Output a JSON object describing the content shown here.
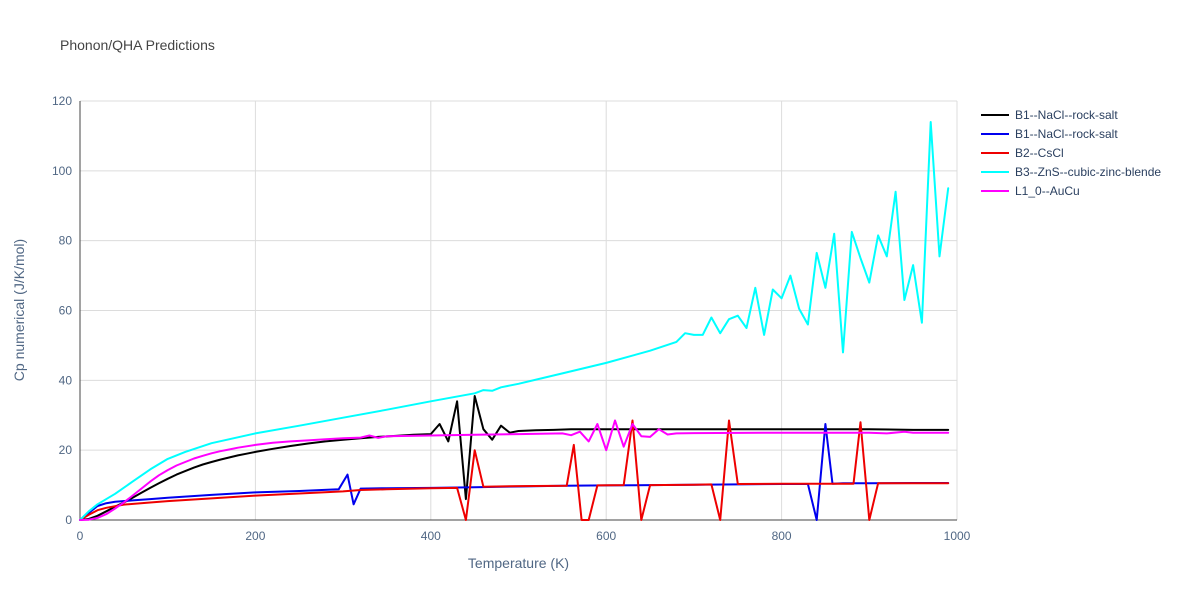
{
  "chart_data": {
    "type": "line",
    "title": "Phonon/QHA Predictions",
    "xlabel": "Temperature (K)",
    "ylabel": "Cp numerical (J/K/mol)",
    "xlim": [
      0,
      1000
    ],
    "ylim": [
      0,
      120
    ],
    "xticks": [
      0,
      200,
      400,
      600,
      800,
      1000
    ],
    "yticks": [
      0,
      20,
      40,
      60,
      80,
      100,
      120
    ],
    "grid": true,
    "legend_position": "top-right",
    "series": [
      {
        "name": "B1--NaCl--rock-salt",
        "color": "#000000",
        "x": [
          0,
          10,
          20,
          30,
          40,
          50,
          60,
          70,
          80,
          90,
          100,
          110,
          120,
          130,
          140,
          150,
          160,
          170,
          180,
          190,
          200,
          220,
          240,
          260,
          280,
          300,
          320,
          340,
          360,
          380,
          400,
          410,
          420,
          430,
          440,
          450,
          460,
          470,
          480,
          490,
          500,
          520,
          540,
          560,
          580,
          600,
          650,
          700,
          750,
          800,
          850,
          900,
          950,
          990
        ],
        "y": [
          0,
          0.3,
          1.2,
          2.5,
          3.8,
          5.0,
          6.4,
          7.8,
          9.2,
          10.5,
          11.8,
          13.0,
          14.0,
          15.0,
          15.9,
          16.6,
          17.3,
          17.9,
          18.5,
          19.0,
          19.5,
          20.4,
          21.2,
          21.9,
          22.5,
          23.0,
          23.4,
          23.8,
          24.1,
          24.4,
          24.6,
          27.5,
          22.5,
          34.0,
          6.0,
          35.5,
          26.0,
          23.0,
          27.0,
          25.0,
          25.5,
          25.7,
          25.8,
          26.0,
          26.0,
          26.0,
          26.0,
          26.0,
          26.0,
          26.0,
          26.0,
          26.0,
          25.8,
          25.8
        ]
      },
      {
        "name": "B1--NaCl--rock-salt",
        "color": "#0000ee",
        "x": [
          0,
          10,
          20,
          30,
          40,
          60,
          80,
          100,
          150,
          200,
          250,
          295,
          305,
          312,
          320,
          350,
          400,
          430,
          450,
          500,
          550,
          600,
          650,
          700,
          750,
          800,
          830,
          840,
          850,
          858,
          870,
          900,
          950,
          990
        ],
        "y": [
          0,
          2.0,
          4.0,
          4.8,
          5.2,
          5.6,
          6.0,
          6.4,
          7.2,
          7.9,
          8.3,
          8.8,
          13.0,
          4.5,
          9.0,
          9.1,
          9.2,
          9.3,
          9.4,
          9.6,
          9.8,
          9.9,
          10.0,
          10.1,
          10.2,
          10.3,
          10.3,
          0.0,
          27.5,
          10.4,
          10.5,
          10.5,
          10.6,
          10.6
        ]
      },
      {
        "name": "B2--CsCl",
        "color": "#ee0000",
        "x": [
          0,
          10,
          20,
          30,
          50,
          80,
          100,
          150,
          200,
          250,
          300,
          320,
          350,
          400,
          430,
          440,
          450,
          460,
          500,
          555,
          563,
          572,
          580,
          590,
          620,
          630,
          640,
          650,
          700,
          720,
          730,
          740,
          750,
          800,
          850,
          882,
          890,
          900,
          910,
          990
        ],
        "y": [
          0,
          1.5,
          2.8,
          3.5,
          4.4,
          5.0,
          5.4,
          6.2,
          7.0,
          7.6,
          8.2,
          8.6,
          8.8,
          9.1,
          9.2,
          0.0,
          20.0,
          9.5,
          9.7,
          9.8,
          21.5,
          0.0,
          0.0,
          9.9,
          10.0,
          28.5,
          0.0,
          10.0,
          10.1,
          10.2,
          0.0,
          28.5,
          10.3,
          10.4,
          10.4,
          10.4,
          28.0,
          0.0,
          10.5,
          10.5
        ]
      },
      {
        "name": "B3--ZnS--cubic-zinc-blende",
        "color": "#00ffff",
        "x": [
          0,
          10,
          20,
          40,
          60,
          80,
          100,
          120,
          150,
          200,
          250,
          300,
          350,
          400,
          450,
          460,
          470,
          480,
          500,
          550,
          600,
          650,
          680,
          690,
          700,
          710,
          720,
          730,
          740,
          750,
          760,
          770,
          780,
          790,
          800,
          810,
          820,
          830,
          840,
          850,
          860,
          870,
          880,
          890,
          900,
          910,
          920,
          930,
          940,
          950,
          960,
          970,
          980,
          990
        ],
        "y": [
          0,
          2.5,
          4.5,
          7.5,
          11.0,
          14.5,
          17.5,
          19.5,
          22.0,
          24.8,
          27.0,
          29.3,
          31.6,
          34.0,
          36.3,
          37.2,
          37.0,
          38.0,
          39.0,
          42.0,
          45.0,
          48.5,
          51.0,
          53.5,
          53.0,
          53.0,
          58.0,
          53.5,
          57.5,
          58.5,
          55.0,
          66.5,
          53.0,
          66.0,
          63.5,
          70.0,
          60.5,
          56.0,
          76.5,
          66.5,
          82.0,
          48.0,
          82.5,
          75.0,
          68.0,
          81.5,
          75.5,
          94.0,
          63.0,
          73.0,
          56.5,
          114.0,
          75.5,
          95.0
        ]
      },
      {
        "name": "L1_0--AuCu",
        "color": "#ff00ff",
        "x": [
          0,
          10,
          20,
          30,
          40,
          50,
          60,
          70,
          80,
          90,
          100,
          110,
          120,
          130,
          140,
          150,
          160,
          170,
          180,
          190,
          200,
          220,
          240,
          260,
          280,
          300,
          320,
          330,
          340,
          350,
          400,
          450,
          500,
          550,
          560,
          570,
          580,
          590,
          600,
          610,
          620,
          630,
          640,
          650,
          660,
          670,
          680,
          700,
          800,
          900,
          920,
          940,
          950,
          990
        ],
        "y": [
          0,
          0.1,
          0.6,
          1.7,
          3.3,
          5.0,
          7.0,
          9.0,
          11.0,
          12.8,
          14.3,
          15.6,
          16.6,
          17.6,
          18.4,
          19.1,
          19.7,
          20.2,
          20.7,
          21.1,
          21.5,
          22.1,
          22.5,
          22.8,
          23.1,
          23.4,
          23.6,
          24.2,
          23.5,
          24.0,
          24.2,
          24.4,
          24.6,
          24.8,
          24.3,
          25.3,
          22.5,
          27.5,
          20.0,
          28.5,
          21.0,
          27.5,
          24.0,
          23.8,
          26.0,
          24.5,
          24.8,
          24.9,
          25.0,
          25.0,
          24.8,
          25.3,
          25.0,
          25.0
        ]
      }
    ]
  }
}
